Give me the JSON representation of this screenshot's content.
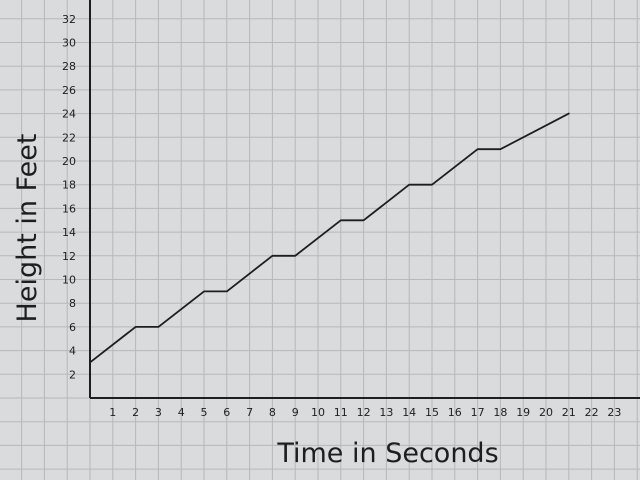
{
  "chart_data": {
    "type": "line",
    "title": "",
    "xlabel": "Time in Seconds",
    "ylabel": "Height in Feet",
    "xlim": [
      0,
      23
    ],
    "ylim": [
      0,
      32
    ],
    "x_ticks": [
      1,
      2,
      3,
      4,
      5,
      6,
      7,
      8,
      9,
      10,
      11,
      12,
      13,
      14,
      15,
      16,
      17,
      18,
      19,
      20,
      21,
      22,
      23
    ],
    "y_ticks": [
      2,
      4,
      6,
      8,
      10,
      12,
      14,
      16,
      18,
      20,
      22,
      24,
      26,
      28,
      30,
      32
    ],
    "grid": true,
    "series": [
      {
        "x": [
          0,
          2,
          3,
          5,
          6,
          8,
          9,
          11,
          12,
          14,
          15,
          17,
          18,
          21
        ],
        "y": [
          3,
          6,
          6,
          9,
          9,
          12,
          12,
          15,
          15,
          18,
          18,
          21,
          21,
          24
        ]
      }
    ],
    "colors": {
      "paper": "#d9dbdc",
      "grid": "#b5b9bd",
      "ink": "#1e1e1e"
    }
  }
}
